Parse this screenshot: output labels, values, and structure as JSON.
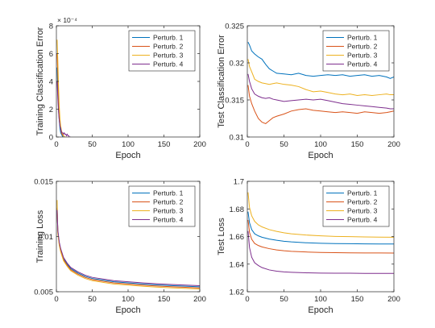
{
  "colors": {
    "axis": "#262626",
    "background": "#ffffff",
    "series": [
      "#0072BD",
      "#D95319",
      "#EDB120",
      "#7E2F8E"
    ]
  },
  "chart_data": [
    {
      "id": "train-err",
      "type": "line",
      "xlabel": "Epoch",
      "ylabel": "Training Classification Error",
      "exponent_label": "× 10⁻⁴",
      "xlim": [
        0,
        200
      ],
      "ylim": [
        0,
        0.0008
      ],
      "xticks": [
        0,
        50,
        100,
        150,
        200
      ],
      "yticks": [
        0,
        0.0002,
        0.0004,
        0.0006,
        0.0008
      ],
      "yticklabels": [
        "0",
        "2",
        "4",
        "6",
        "8"
      ],
      "legend_loc": "top-right",
      "grid": false,
      "series": [
        {
          "name": "Perturb. 1",
          "x": [
            1,
            2,
            3,
            4,
            5,
            6,
            7,
            8,
            9,
            10,
            11,
            12,
            13,
            14,
            15
          ],
          "y": [
            0.0005,
            0.00032,
            0.0002,
            0.00012,
            6e-05,
            3e-05,
            2e-05,
            1e-05,
            0,
            0,
            0,
            0,
            0,
            0,
            0
          ]
        },
        {
          "name": "Perturb. 2",
          "x": [
            1,
            2,
            3,
            4,
            5,
            6,
            7,
            8,
            9,
            10,
            11,
            12,
            13,
            14,
            15
          ],
          "y": [
            0.0006,
            0.00045,
            0.0003,
            0.00018,
            0.0001,
            6e-05,
            3e-05,
            2e-05,
            1e-05,
            1e-05,
            0,
            0,
            0,
            0,
            0
          ]
        },
        {
          "name": "Perturb. 3",
          "x": [
            1,
            2,
            3,
            4,
            5,
            6,
            7,
            8,
            9,
            10,
            11,
            12,
            13,
            14,
            15
          ],
          "y": [
            0.0007,
            0.00055,
            0.00036,
            0.00022,
            0.00013,
            8e-05,
            5e-05,
            3e-05,
            2e-05,
            1e-05,
            0,
            0,
            0,
            0,
            0
          ]
        },
        {
          "name": "Perturb. 4",
          "x": [
            1,
            2,
            3,
            4,
            5,
            6,
            7,
            8,
            9,
            10,
            11,
            12,
            13,
            14,
            15,
            16,
            17,
            18,
            19,
            20
          ],
          "y": [
            0.0004,
            0.00028,
            0.00018,
            0.00012,
            8e-05,
            6e-05,
            4e-05,
            3e-05,
            3e-05,
            2e-05,
            3e-05,
            2e-05,
            2e-05,
            1e-05,
            2e-05,
            1e-05,
            1e-05,
            0,
            0,
            0
          ]
        }
      ]
    },
    {
      "id": "test-err",
      "type": "line",
      "xlabel": "Epoch",
      "ylabel": "Test Classification Error",
      "xlim": [
        0,
        200
      ],
      "ylim": [
        0.31,
        0.325
      ],
      "xticks": [
        0,
        50,
        100,
        150,
        200
      ],
      "yticks": [
        0.31,
        0.315,
        0.32,
        0.325
      ],
      "yticklabels": [
        "0.31",
        "0.315",
        "0.32",
        "0.325"
      ],
      "legend_loc": "top-right",
      "grid": false,
      "series": [
        {
          "name": "Perturb. 1",
          "x": [
            1,
            3,
            6,
            10,
            15,
            20,
            25,
            30,
            35,
            40,
            50,
            60,
            70,
            80,
            90,
            100,
            110,
            120,
            130,
            140,
            150,
            160,
            170,
            180,
            190,
            195,
            200
          ],
          "y": [
            0.3228,
            0.3224,
            0.3216,
            0.3212,
            0.3208,
            0.3205,
            0.3198,
            0.3192,
            0.3189,
            0.3186,
            0.3185,
            0.3184,
            0.3186,
            0.3183,
            0.3182,
            0.3183,
            0.3184,
            0.3183,
            0.3184,
            0.3182,
            0.3183,
            0.3184,
            0.3182,
            0.3183,
            0.3181,
            0.3179,
            0.3181
          ]
        },
        {
          "name": "Perturb. 2",
          "x": [
            1,
            3,
            6,
            10,
            15,
            20,
            25,
            30,
            35,
            40,
            50,
            60,
            70,
            80,
            90,
            100,
            110,
            120,
            130,
            140,
            150,
            160,
            170,
            180,
            190,
            195,
            200
          ],
          "y": [
            0.317,
            0.3155,
            0.3145,
            0.3135,
            0.3125,
            0.312,
            0.3118,
            0.3122,
            0.3126,
            0.3128,
            0.3131,
            0.3135,
            0.3137,
            0.3138,
            0.3136,
            0.3135,
            0.3134,
            0.3133,
            0.3134,
            0.3133,
            0.3132,
            0.3134,
            0.3133,
            0.3132,
            0.3133,
            0.3134,
            0.3135
          ]
        },
        {
          "name": "Perturb. 3",
          "x": [
            1,
            3,
            6,
            10,
            15,
            20,
            25,
            30,
            35,
            40,
            50,
            60,
            70,
            80,
            90,
            100,
            110,
            120,
            130,
            140,
            150,
            160,
            170,
            180,
            190,
            195,
            200
          ],
          "y": [
            0.3205,
            0.3195,
            0.3188,
            0.3178,
            0.3175,
            0.3173,
            0.3172,
            0.3171,
            0.3172,
            0.3173,
            0.3171,
            0.317,
            0.3168,
            0.3164,
            0.3161,
            0.3162,
            0.316,
            0.3158,
            0.3157,
            0.3158,
            0.3156,
            0.3157,
            0.3156,
            0.3157,
            0.3158,
            0.3157,
            0.3157
          ]
        },
        {
          "name": "Perturb. 4",
          "x": [
            1,
            3,
            6,
            10,
            15,
            20,
            25,
            30,
            35,
            40,
            50,
            60,
            70,
            80,
            90,
            100,
            110,
            120,
            130,
            140,
            150,
            160,
            170,
            180,
            190,
            195,
            200
          ],
          "y": [
            0.3185,
            0.3175,
            0.3165,
            0.3158,
            0.3155,
            0.3153,
            0.3152,
            0.3153,
            0.3151,
            0.315,
            0.3148,
            0.3149,
            0.315,
            0.3151,
            0.315,
            0.3151,
            0.3149,
            0.3147,
            0.3145,
            0.3144,
            0.3143,
            0.3142,
            0.3141,
            0.314,
            0.3139,
            0.3138,
            0.3138
          ]
        }
      ]
    },
    {
      "id": "train-loss",
      "type": "line",
      "xlabel": "Epoch",
      "ylabel": "Training Loss",
      "xlim": [
        0,
        200
      ],
      "ylim": [
        0.005,
        0.015
      ],
      "xticks": [
        0,
        50,
        100,
        150,
        200
      ],
      "yticks": [
        0.005,
        0.01,
        0.015
      ],
      "yticklabels": [
        "0.005",
        "0.01",
        "0.015"
      ],
      "legend_loc": "top-right",
      "grid": false,
      "series": [
        {
          "name": "Perturb. 1",
          "x": [
            1,
            2,
            4,
            6,
            8,
            10,
            15,
            20,
            30,
            40,
            50,
            60,
            80,
            100,
            120,
            140,
            160,
            180,
            200
          ],
          "y": [
            0.0125,
            0.0105,
            0.0094,
            0.0088,
            0.0084,
            0.008,
            0.0075,
            0.0071,
            0.0067,
            0.0064,
            0.0062,
            0.0061,
            0.0059,
            0.0058,
            0.0057,
            0.00562,
            0.00556,
            0.0055,
            0.00545
          ]
        },
        {
          "name": "Perturb. 2",
          "x": [
            1,
            2,
            4,
            6,
            8,
            10,
            15,
            20,
            30,
            40,
            50,
            60,
            80,
            100,
            120,
            140,
            160,
            180,
            200
          ],
          "y": [
            0.0126,
            0.0104,
            0.0093,
            0.0087,
            0.0083,
            0.0079,
            0.0074,
            0.007,
            0.0066,
            0.0063,
            0.0061,
            0.006,
            0.0058,
            0.0057,
            0.0056,
            0.00552,
            0.00546,
            0.0054,
            0.00535
          ]
        },
        {
          "name": "Perturb. 3",
          "x": [
            1,
            2,
            4,
            6,
            8,
            10,
            15,
            20,
            30,
            40,
            50,
            60,
            80,
            100,
            120,
            140,
            160,
            180,
            200
          ],
          "y": [
            0.0133,
            0.0103,
            0.0092,
            0.0086,
            0.0082,
            0.0078,
            0.0073,
            0.0069,
            0.0065,
            0.0062,
            0.006,
            0.0059,
            0.0057,
            0.0056,
            0.0055,
            0.00542,
            0.00536,
            0.0053,
            0.00525
          ]
        },
        {
          "name": "Perturb. 4",
          "x": [
            1,
            2,
            4,
            6,
            8,
            10,
            15,
            20,
            30,
            40,
            50,
            60,
            80,
            100,
            120,
            140,
            160,
            180,
            200
          ],
          "y": [
            0.0124,
            0.0106,
            0.0095,
            0.0089,
            0.0085,
            0.0081,
            0.0076,
            0.0072,
            0.0068,
            0.0065,
            0.0063,
            0.0062,
            0.006,
            0.0059,
            0.0058,
            0.00572,
            0.00566,
            0.0056,
            0.00555
          ]
        }
      ]
    },
    {
      "id": "test-loss",
      "type": "line",
      "xlabel": "Epoch",
      "ylabel": "Test Loss",
      "xlim": [
        0,
        200
      ],
      "ylim": [
        1.62,
        1.7
      ],
      "xticks": [
        0,
        50,
        100,
        150,
        200
      ],
      "yticks": [
        1.62,
        1.64,
        1.66,
        1.68,
        1.7
      ],
      "yticklabels": [
        "1.62",
        "1.64",
        "1.66",
        "1.68",
        "1.7"
      ],
      "legend_loc": "top-right",
      "grid": false,
      "series": [
        {
          "name": "Perturb. 1",
          "x": [
            1,
            3,
            6,
            10,
            15,
            20,
            30,
            40,
            50,
            60,
            80,
            100,
            120,
            140,
            160,
            180,
            200
          ],
          "y": [
            1.678,
            1.67,
            1.665,
            1.662,
            1.6605,
            1.6595,
            1.6582,
            1.6573,
            1.6566,
            1.6561,
            1.6555,
            1.6551,
            1.6549,
            1.6548,
            1.6547,
            1.6546,
            1.6546
          ]
        },
        {
          "name": "Perturb. 2",
          "x": [
            1,
            3,
            6,
            10,
            15,
            20,
            30,
            40,
            50,
            60,
            80,
            100,
            120,
            140,
            160,
            180,
            200
          ],
          "y": [
            1.672,
            1.663,
            1.658,
            1.655,
            1.6535,
            1.6525,
            1.6512,
            1.6503,
            1.6497,
            1.6493,
            1.6488,
            1.6485,
            1.6483,
            1.6482,
            1.6481,
            1.6481,
            1.648
          ]
        },
        {
          "name": "Perturb. 3",
          "x": [
            1,
            3,
            6,
            10,
            15,
            20,
            30,
            40,
            50,
            60,
            80,
            100,
            120,
            140,
            160,
            180,
            200
          ],
          "y": [
            1.692,
            1.681,
            1.675,
            1.671,
            1.6685,
            1.667,
            1.665,
            1.6637,
            1.6627,
            1.662,
            1.6611,
            1.6605,
            1.6601,
            1.6599,
            1.6597,
            1.6596,
            1.6595
          ]
        },
        {
          "name": "Perturb. 4",
          "x": [
            1,
            3,
            6,
            10,
            15,
            20,
            30,
            40,
            50,
            60,
            80,
            100,
            120,
            140,
            160,
            180,
            200
          ],
          "y": [
            1.664,
            1.652,
            1.645,
            1.641,
            1.639,
            1.6375,
            1.6358,
            1.6349,
            1.6344,
            1.6341,
            1.6337,
            1.6335,
            1.6334,
            1.6334,
            1.6333,
            1.6333,
            1.6333
          ]
        }
      ]
    }
  ]
}
